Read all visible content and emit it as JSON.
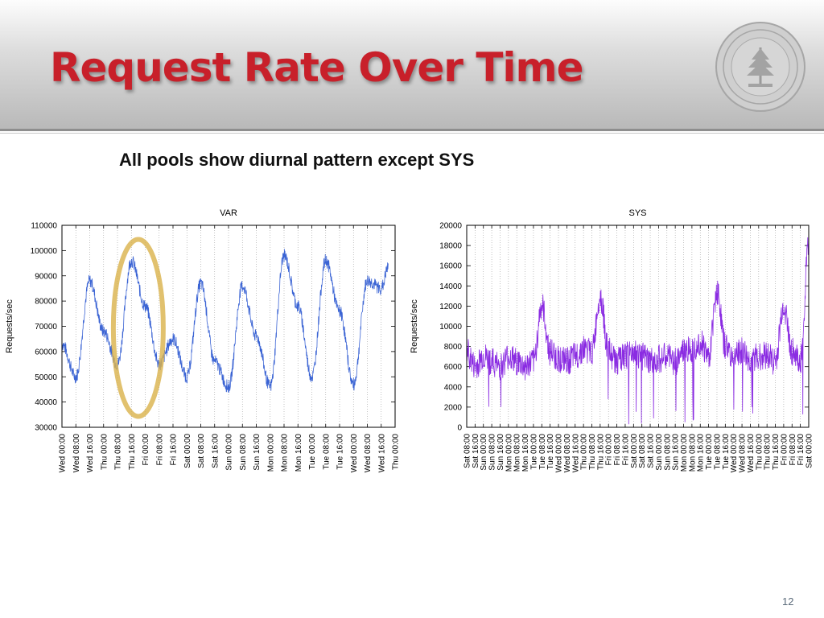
{
  "slide": {
    "title": "Request Rate Over Time",
    "subtitle": "All pools show diurnal pattern except SYS",
    "page_number": "12"
  },
  "colors": {
    "title": "#c8202a",
    "var_series": "#3b64d4",
    "sys_series": "#8a2be2",
    "highlight": "#d9b24a"
  },
  "icons": {
    "logo": "university-seal-icon"
  },
  "chart_data": [
    {
      "type": "line",
      "title": "VAR",
      "xlabel": "",
      "ylabel": "Requests/sec",
      "ylim": [
        30000,
        110000
      ],
      "yticks": [
        30000,
        40000,
        50000,
        60000,
        70000,
        80000,
        90000,
        100000,
        110000
      ],
      "x_tick_labels": [
        "Wed 00:00",
        "Wed 08:00",
        "Wed 16:00",
        "Thu 00:00",
        "Thu 08:00",
        "Thu 16:00",
        "Fri 00:00",
        "Fri 08:00",
        "Fri 16:00",
        "Sat 00:00",
        "Sat 08:00",
        "Sat 16:00",
        "Sun 00:00",
        "Sun 08:00",
        "Sun 16:00",
        "Mon 00:00",
        "Mon 08:00",
        "Mon 16:00",
        "Tue 00:00",
        "Tue 08:00",
        "Tue 16:00",
        "Wed 00:00",
        "Wed 08:00",
        "Wed 16:00",
        "Thu 00:00"
      ],
      "grid": "vertical-dotted",
      "annotation": "highlight ellipse around Thu 08:00 – Fri 08:00",
      "series": [
        {
          "x": [
            0,
            1,
            2,
            3,
            4,
            5,
            6,
            7,
            8,
            9,
            10,
            11,
            12,
            13,
            14,
            15,
            16,
            17,
            18,
            19,
            20,
            21,
            22,
            23,
            23.5
          ],
          "values": [
            63000,
            50000,
            88000,
            68000,
            55000,
            96000,
            78000,
            55000,
            65000,
            50000,
            87000,
            56000,
            46000,
            86000,
            66000,
            46000,
            98000,
            78000,
            50000,
            96000,
            76000,
            47000,
            88000,
            85000,
            93000
          ]
        }
      ]
    },
    {
      "type": "line",
      "title": "SYS",
      "xlabel": "",
      "ylabel": "Requests/sec",
      "ylim": [
        0,
        20000
      ],
      "yticks": [
        0,
        2000,
        4000,
        6000,
        8000,
        10000,
        12000,
        14000,
        16000,
        18000,
        20000
      ],
      "x_tick_labels": [
        "Sat 08:00",
        "Sat 16:00",
        "Sun 00:00",
        "Sun 08:00",
        "Sun 16:00",
        "Mon 00:00",
        "Mon 08:00",
        "Mon 16:00",
        "Tue 00:00",
        "Tue 08:00",
        "Tue 16:00",
        "Wed 00:00",
        "Wed 08:00",
        "Wed 16:00",
        "Thu 00:00",
        "Thu 08:00",
        "Thu 16:00",
        "Fri 00:00",
        "Fri 08:00",
        "Fri 16:00",
        "Sat 00:00",
        "Sat 08:00",
        "Sat 16:00",
        "Sun 00:00",
        "Sun 08:00",
        "Sun 16:00",
        "Mon 00:00",
        "Mon 08:00",
        "Mon 16:00",
        "Tue 00:00",
        "Tue 08:00",
        "Tue 16:00",
        "Wed 00:00",
        "Wed 08:00",
        "Wed 16:00",
        "Thu 00:00",
        "Thu 08:00",
        "Thu 16:00",
        "Fri 00:00",
        "Fri 08:00",
        "Fri 16:00",
        "Sat 00:00"
      ],
      "grid": "vertical-dotted",
      "series": [
        {
          "x": [
            0,
            1,
            2,
            3,
            4,
            5,
            6,
            7,
            8,
            9,
            10,
            11,
            12,
            13,
            14,
            15,
            16,
            17,
            18,
            19,
            20,
            21,
            22,
            23,
            24,
            25,
            26,
            27,
            28,
            29,
            30,
            31,
            32,
            33,
            34,
            35,
            36,
            37,
            38,
            39,
            40,
            41
          ],
          "values": [
            7500,
            6000,
            7000,
            6500,
            6000,
            7000,
            6500,
            6000,
            6500,
            12000,
            7500,
            6800,
            6500,
            7000,
            7800,
            7500,
            13000,
            7500,
            6500,
            7000,
            7500,
            7000,
            6500,
            6800,
            7000,
            6500,
            7500,
            7800,
            8500,
            7000,
            13500,
            8000,
            7000,
            7500,
            6500,
            7000,
            7200,
            6500,
            12000,
            7500,
            6500,
            18000
          ]
        }
      ]
    }
  ]
}
